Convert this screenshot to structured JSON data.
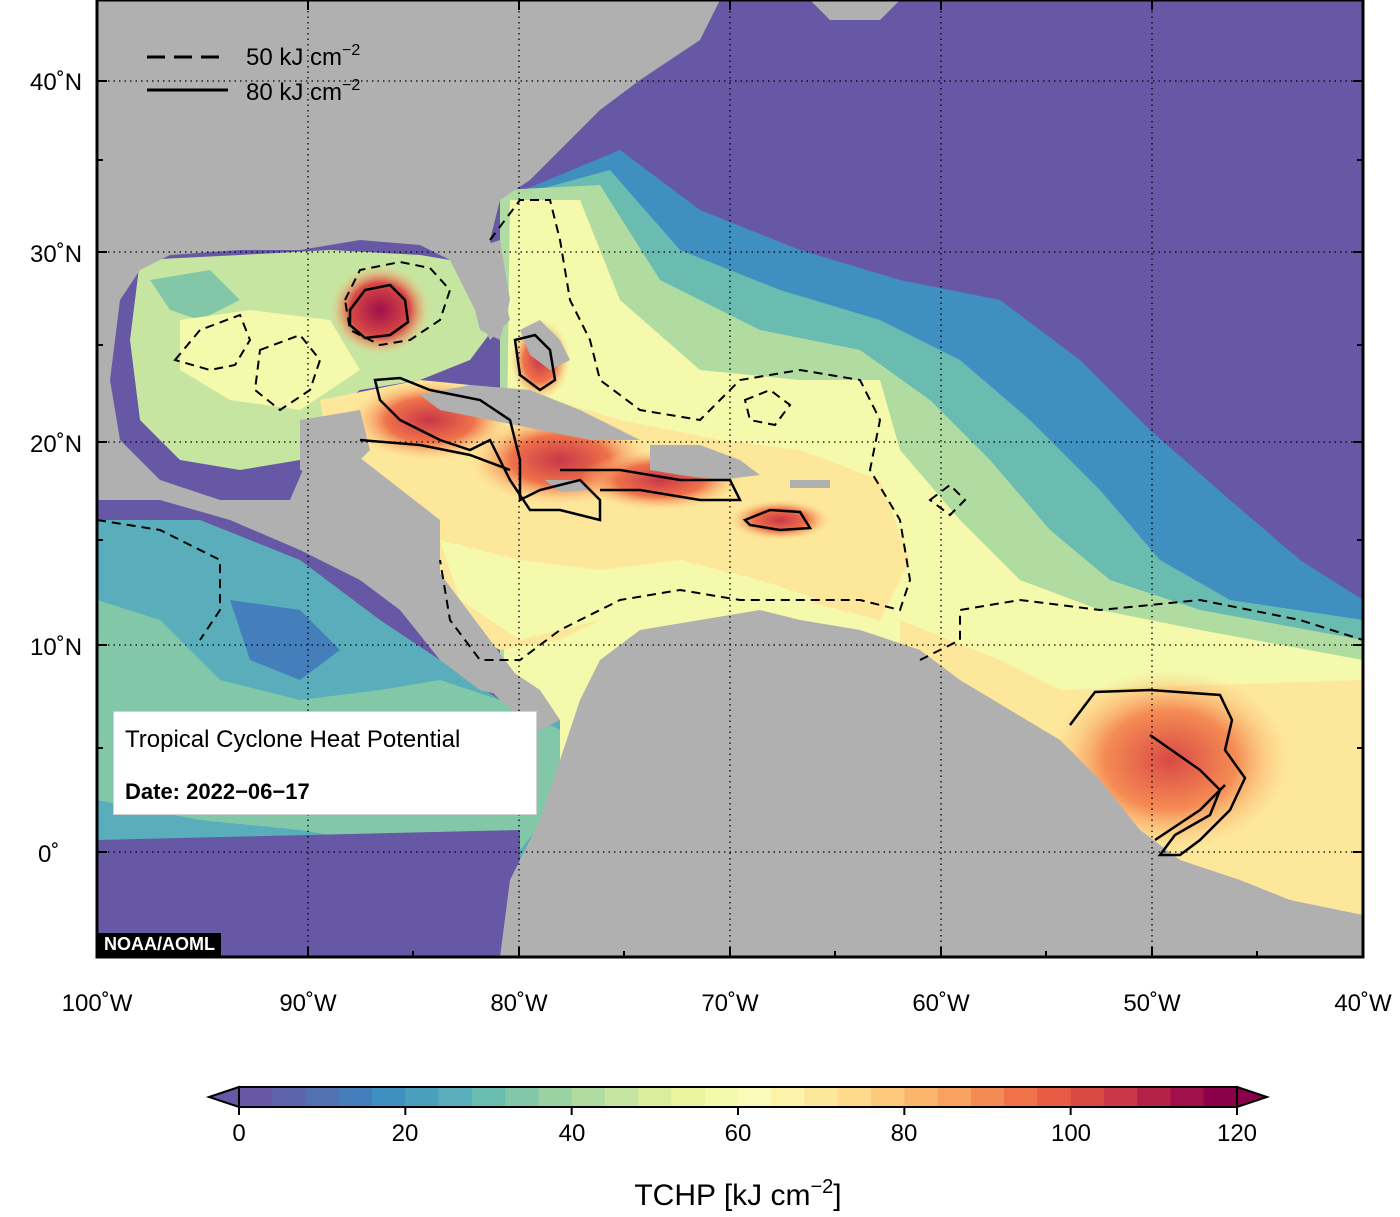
{
  "map": {
    "lat_labels": [
      "40˚N",
      "30˚N",
      "20˚N",
      "10˚N",
      "0˚"
    ],
    "lon_labels": [
      "100˚W",
      "90˚W",
      "80˚W",
      "70˚W",
      "60˚W",
      "50˚W",
      "40˚W"
    ],
    "extent": {
      "lon_min": -100,
      "lon_max": -40,
      "lat_min": -5,
      "lat_max": 44
    }
  },
  "legend": {
    "dashed_label": "50 kJ cm",
    "solid_label": "80 kJ cm",
    "exponent": "−2"
  },
  "info": {
    "title": "Tropical Cyclone Heat Potential",
    "date_label": "Date: 2022−06−17"
  },
  "credit": "NOAA/AOML",
  "colorbar": {
    "ticks": [
      "0",
      "20",
      "40",
      "60",
      "80",
      "100",
      "120"
    ],
    "title": "TCHP [kJ cm",
    "title_suffix": "]",
    "exponent": "−2",
    "min": 0,
    "max": 120,
    "colors": [
      "#6758a6",
      "#5d63ac",
      "#5171b3",
      "#447fbb",
      "#3f8fc0",
      "#4a9fbf",
      "#5aaebb",
      "#6bbcb0",
      "#82c8a8",
      "#99d3a4",
      "#b0dca2",
      "#c6e5a0",
      "#d9ee9c",
      "#e9f59f",
      "#f4f9ac",
      "#fbfbb9",
      "#fcf2a9",
      "#fde79b",
      "#fdda8c",
      "#fdc97d",
      "#fcb56d",
      "#f9a160",
      "#f58b54",
      "#ef724a",
      "#e65c44",
      "#d94a45",
      "#c93748",
      "#b52248",
      "#a0104a",
      "#8c0049"
    ]
  },
  "colors": {
    "land": "#b0b0b0",
    "deep_ocean": "#6758a6"
  }
}
